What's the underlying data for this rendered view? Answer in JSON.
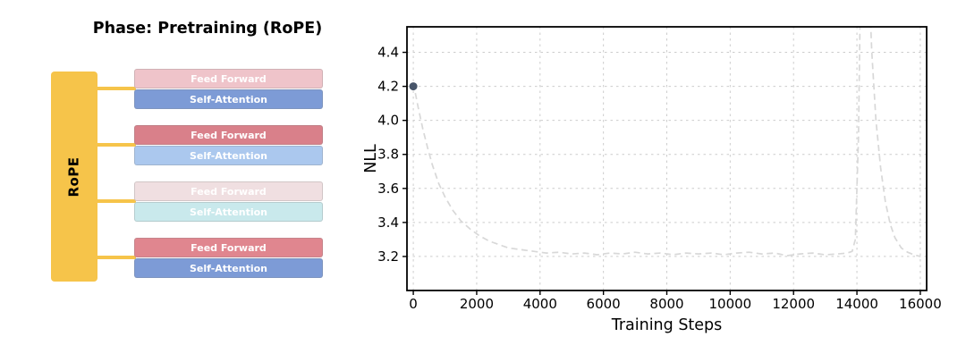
{
  "left_panel": {
    "title": "Phase: Pretraining (RoPE)",
    "rope_label": "RoPE",
    "rope_color": "#F6C44A",
    "connector_color": "#F6C44A",
    "blocks": [
      {
        "ff_label": "Feed Forward",
        "ff_color": "#EFC4CA",
        "sa_label": "Self-Attention",
        "sa_color": "#7D9BD6"
      },
      {
        "ff_label": "Feed Forward",
        "ff_color": "#D9808A",
        "sa_label": "Self-Attention",
        "sa_color": "#ABC8EE"
      },
      {
        "ff_label": "Feed Forward",
        "ff_color": "#F0DFE1",
        "sa_label": "Self-Attention",
        "sa_color": "#C9E9EC"
      },
      {
        "ff_label": "Feed Forward",
        "ff_color": "#E0868F",
        "sa_label": "Self-Attention",
        "sa_color": "#7D9BD6"
      }
    ]
  },
  "chart_data": {
    "type": "line",
    "title": "",
    "xlabel": "Training Steps",
    "ylabel": "NLL",
    "xlim": [
      -200,
      16200
    ],
    "ylim": [
      3.0,
      4.55
    ],
    "xticks": [
      0,
      2000,
      4000,
      6000,
      8000,
      10000,
      12000,
      14000,
      16000
    ],
    "yticks": [
      3.2,
      3.4,
      3.6,
      3.8,
      4.0,
      4.2,
      4.4
    ],
    "grid": true,
    "grid_color": "#cccccc",
    "legend_position": "none",
    "series": [
      {
        "name": "pretraining-nll",
        "style": "dashed",
        "color": "#d8d8d8",
        "points": [
          [
            0,
            4.22
          ],
          [
            150,
            4.08
          ],
          [
            300,
            3.95
          ],
          [
            450,
            3.84
          ],
          [
            600,
            3.74
          ],
          [
            800,
            3.63
          ],
          [
            1000,
            3.55
          ],
          [
            1250,
            3.47
          ],
          [
            1500,
            3.41
          ],
          [
            1800,
            3.36
          ],
          [
            2100,
            3.32
          ],
          [
            2400,
            3.29
          ],
          [
            2700,
            3.27
          ],
          [
            3000,
            3.25
          ],
          [
            3400,
            3.24
          ],
          [
            3800,
            3.23
          ],
          [
            4200,
            3.22
          ],
          [
            4600,
            3.225
          ],
          [
            5000,
            3.215
          ],
          [
            5400,
            3.22
          ],
          [
            5800,
            3.21
          ],
          [
            6200,
            3.22
          ],
          [
            6600,
            3.215
          ],
          [
            7000,
            3.225
          ],
          [
            7400,
            3.215
          ],
          [
            7800,
            3.22
          ],
          [
            8200,
            3.21
          ],
          [
            8600,
            3.22
          ],
          [
            9000,
            3.215
          ],
          [
            9400,
            3.22
          ],
          [
            9800,
            3.21
          ],
          [
            10200,
            3.22
          ],
          [
            10600,
            3.225
          ],
          [
            11000,
            3.215
          ],
          [
            11400,
            3.22
          ],
          [
            11800,
            3.205
          ],
          [
            12200,
            3.215
          ],
          [
            12600,
            3.22
          ],
          [
            13000,
            3.21
          ],
          [
            13400,
            3.215
          ],
          [
            13700,
            3.22
          ],
          [
            13850,
            3.23
          ],
          [
            13950,
            3.3
          ],
          [
            14050,
            3.9
          ],
          [
            14120,
            4.9
          ],
          [
            14180,
            5.4
          ],
          [
            14280,
            5.35
          ],
          [
            14370,
            4.85
          ],
          [
            14470,
            4.4
          ],
          [
            14600,
            4.0
          ],
          [
            14750,
            3.72
          ],
          [
            14900,
            3.52
          ],
          [
            15050,
            3.39
          ],
          [
            15200,
            3.31
          ],
          [
            15400,
            3.25
          ],
          [
            15600,
            3.225
          ],
          [
            15800,
            3.21
          ],
          [
            16000,
            3.2
          ]
        ]
      }
    ],
    "scatter": [
      {
        "name": "initial-nll-point",
        "x": 0,
        "y": 4.2,
        "color": "#475569"
      }
    ]
  }
}
